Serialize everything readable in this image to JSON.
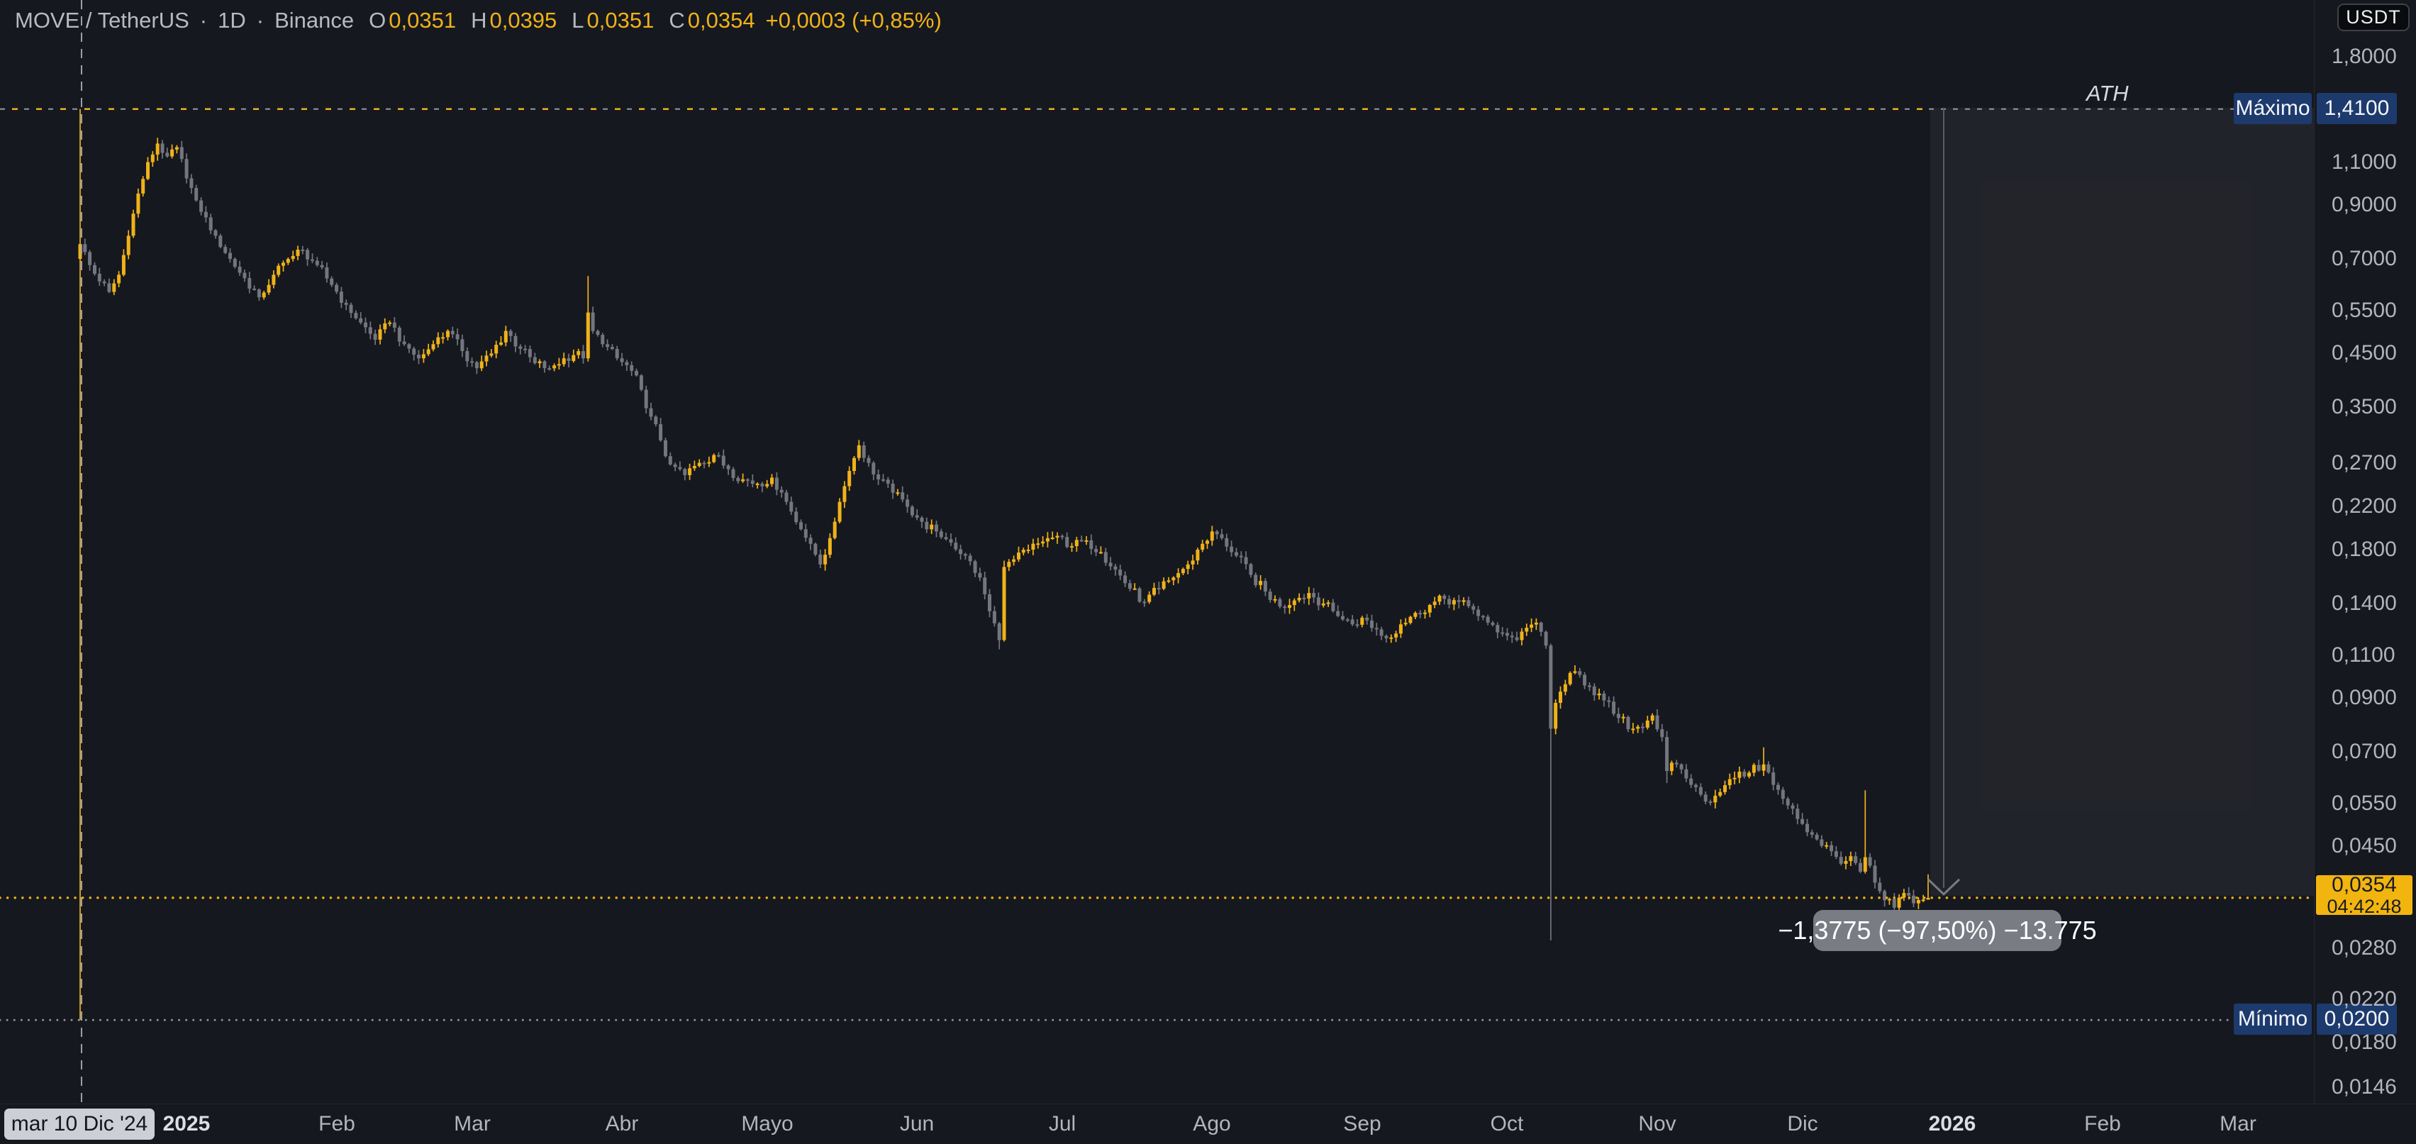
{
  "header": {
    "symbol": "MOVE / TetherUS",
    "sep": "·",
    "timeframe": "1D",
    "exchange": "Binance",
    "o_label": "O",
    "o": "0,0351",
    "h_label": "H",
    "h": "0,0395",
    "l_label": "L",
    "l": "0,0351",
    "c_label": "C",
    "c": "0,0354",
    "change": "+0,0003 (+0,85%)"
  },
  "currency_button": {
    "label": "USDT"
  },
  "price_axis": {
    "maximo": {
      "label": "Máximo",
      "value": "1,4100",
      "price": 1.41
    },
    "minimo": {
      "label": "Mínimo",
      "value": "0,0200",
      "price": 0.02
    },
    "current": {
      "value": "0,0354",
      "countdown": "04:42:48",
      "price": 0.0354
    }
  },
  "time_axis": {
    "crosshair_date": "mar 10 Dic '24"
  },
  "annotations": {
    "ath": "ATH",
    "tooltip": "−1,3775 (−97,50%) −13.775"
  },
  "colors": {
    "bg": "#16181F",
    "up": "#F0B219",
    "down": "#74767F",
    "line_gray": "#9598A1",
    "dim_gray": "#787B86",
    "navy": "#1D3A6D",
    "gold_label": "#F2B50F",
    "axis_text": "#B2B5BE"
  },
  "chart_data": {
    "type": "candlestick",
    "title": "MOVE / TetherUS · 1D · Binance",
    "scale": "log",
    "ylim": [
      0.0146,
      1.8
    ],
    "grid": false,
    "legend_position": "none",
    "price_ticks": [
      {
        "v": 1.8,
        "label": "1,8000"
      },
      {
        "v": 1.1,
        "label": "1,1000"
      },
      {
        "v": 0.9,
        "label": "0,9000"
      },
      {
        "v": 0.7,
        "label": "0,7000"
      },
      {
        "v": 0.55,
        "label": "0,5500"
      },
      {
        "v": 0.45,
        "label": "0,4500"
      },
      {
        "v": 0.35,
        "label": "0,3500"
      },
      {
        "v": 0.27,
        "label": "0,2700"
      },
      {
        "v": 0.22,
        "label": "0,2200"
      },
      {
        "v": 0.18,
        "label": "0,1800"
      },
      {
        "v": 0.14,
        "label": "0,1400"
      },
      {
        "v": 0.11,
        "label": "0,1100"
      },
      {
        "v": 0.09,
        "label": "0,0900"
      },
      {
        "v": 0.07,
        "label": "0,0700"
      },
      {
        "v": 0.055,
        "label": "0,0550"
      },
      {
        "v": 0.045,
        "label": "0,0450"
      },
      {
        "v": 0.028,
        "label": "0,0280"
      },
      {
        "v": 0.022,
        "label": "0,0220"
      },
      {
        "v": 0.018,
        "label": "0,0180"
      },
      {
        "v": 0.0146,
        "label": "0,0146"
      }
    ],
    "special_levels": {
      "ath": 1.41,
      "minimo": 0.02,
      "current": 0.0354
    },
    "month_labels": [
      {
        "text": "2025",
        "day": 22,
        "bold": true
      },
      {
        "text": "Feb",
        "day": 53
      },
      {
        "text": "Mar",
        "day": 81
      },
      {
        "text": "Abr",
        "day": 112
      },
      {
        "text": "Mayo",
        "day": 142
      },
      {
        "text": "Jun",
        "day": 173
      },
      {
        "text": "Jul",
        "day": 203
      },
      {
        "text": "Ago",
        "day": 234
      },
      {
        "text": "Sep",
        "day": 265
      },
      {
        "text": "Oct",
        "day": 295
      },
      {
        "text": "Nov",
        "day": 326
      },
      {
        "text": "Dic",
        "day": 356
      },
      {
        "text": "2026",
        "day": 387,
        "bold": true
      },
      {
        "text": "Feb",
        "day": 418
      },
      {
        "text": "Mar",
        "day": 446
      }
    ],
    "first_day": "2024-12-10",
    "days_total": 383,
    "keyframes": [
      [
        0,
        0.75
      ],
      [
        2,
        0.68
      ],
      [
        4,
        0.63
      ],
      [
        6,
        0.6
      ],
      [
        8,
        0.65
      ],
      [
        10,
        0.78
      ],
      [
        12,
        0.95
      ],
      [
        14,
        1.1
      ],
      [
        16,
        1.2
      ],
      [
        18,
        1.13
      ],
      [
        20,
        1.18
      ],
      [
        22,
        1.02
      ],
      [
        24,
        0.92
      ],
      [
        26,
        0.85
      ],
      [
        28,
        0.78
      ],
      [
        31,
        0.7
      ],
      [
        34,
        0.64
      ],
      [
        37,
        0.585
      ],
      [
        40,
        0.65
      ],
      [
        43,
        0.7
      ],
      [
        46,
        0.73
      ],
      [
        49,
        0.68
      ],
      [
        52,
        0.62
      ],
      [
        55,
        0.565
      ],
      [
        58,
        0.52
      ],
      [
        61,
        0.48
      ],
      [
        64,
        0.52
      ],
      [
        67,
        0.47
      ],
      [
        70,
        0.44
      ],
      [
        73,
        0.47
      ],
      [
        76,
        0.5
      ],
      [
        79,
        0.455
      ],
      [
        82,
        0.42
      ],
      [
        85,
        0.45
      ],
      [
        88,
        0.5
      ],
      [
        91,
        0.46
      ],
      [
        94,
        0.43
      ],
      [
        97,
        0.42
      ],
      [
        100,
        0.44
      ],
      [
        103,
        0.455
      ],
      [
        104,
        0.44
      ],
      [
        105,
        0.545
      ],
      [
        106,
        0.5
      ],
      [
        108,
        0.47
      ],
      [
        111,
        0.44
      ],
      [
        114,
        0.415
      ],
      [
        116,
        0.38
      ],
      [
        118,
        0.335
      ],
      [
        120,
        0.3
      ],
      [
        122,
        0.268
      ],
      [
        125,
        0.255
      ],
      [
        128,
        0.27
      ],
      [
        131,
        0.28
      ],
      [
        134,
        0.262
      ],
      [
        137,
        0.25
      ],
      [
        140,
        0.245
      ],
      [
        143,
        0.252
      ],
      [
        145,
        0.235
      ],
      [
        147,
        0.215
      ],
      [
        149,
        0.198
      ],
      [
        151,
        0.185
      ],
      [
        153,
        0.168
      ],
      [
        155,
        0.19
      ],
      [
        157,
        0.225
      ],
      [
        159,
        0.26
      ],
      [
        161,
        0.293
      ],
      [
        163,
        0.27
      ],
      [
        165,
        0.25
      ],
      [
        168,
        0.235
      ],
      [
        171,
        0.22
      ],
      [
        174,
        0.205
      ],
      [
        177,
        0.196
      ],
      [
        180,
        0.186
      ],
      [
        183,
        0.175
      ],
      [
        186,
        0.158
      ],
      [
        188,
        0.135
      ],
      [
        190,
        0.118
      ],
      [
        191,
        0.166
      ],
      [
        193,
        0.172
      ],
      [
        196,
        0.18
      ],
      [
        199,
        0.187
      ],
      [
        202,
        0.192
      ],
      [
        205,
        0.183
      ],
      [
        208,
        0.188
      ],
      [
        211,
        0.178
      ],
      [
        214,
        0.164
      ],
      [
        217,
        0.15
      ],
      [
        220,
        0.141
      ],
      [
        223,
        0.15
      ],
      [
        226,
        0.158
      ],
      [
        229,
        0.168
      ],
      [
        232,
        0.185
      ],
      [
        234,
        0.196
      ],
      [
        236,
        0.19
      ],
      [
        239,
        0.175
      ],
      [
        242,
        0.16
      ],
      [
        245,
        0.148
      ],
      [
        248,
        0.138
      ],
      [
        251,
        0.142
      ],
      [
        254,
        0.147
      ],
      [
        257,
        0.14
      ],
      [
        260,
        0.132
      ],
      [
        263,
        0.127
      ],
      [
        265,
        0.131
      ],
      [
        268,
        0.124
      ],
      [
        270,
        0.119
      ],
      [
        273,
        0.127
      ],
      [
        276,
        0.134
      ],
      [
        279,
        0.139
      ],
      [
        282,
        0.143
      ],
      [
        285,
        0.141
      ],
      [
        288,
        0.136
      ],
      [
        291,
        0.128
      ],
      [
        294,
        0.122
      ],
      [
        297,
        0.118
      ],
      [
        299,
        0.125
      ],
      [
        301,
        0.128
      ],
      [
        303,
        0.115
      ],
      [
        304,
        0.078
      ],
      [
        305,
        0.088
      ],
      [
        307,
        0.096
      ],
      [
        309,
        0.102
      ],
      [
        312,
        0.095
      ],
      [
        315,
        0.089
      ],
      [
        318,
        0.082
      ],
      [
        321,
        0.078
      ],
      [
        324,
        0.081
      ],
      [
        325,
        0.083
      ],
      [
        327,
        0.075
      ],
      [
        328,
        0.064
      ],
      [
        330,
        0.066
      ],
      [
        333,
        0.06
      ],
      [
        336,
        0.0555
      ],
      [
        339,
        0.058
      ],
      [
        342,
        0.062
      ],
      [
        345,
        0.0635
      ],
      [
        348,
        0.066
      ],
      [
        350,
        0.06
      ],
      [
        353,
        0.0545
      ],
      [
        356,
        0.05
      ],
      [
        359,
        0.0465
      ],
      [
        362,
        0.044
      ],
      [
        364,
        0.0415
      ],
      [
        366,
        0.043
      ],
      [
        368,
        0.04
      ],
      [
        369,
        0.0428
      ],
      [
        371,
        0.038
      ],
      [
        373,
        0.035
      ],
      [
        375,
        0.0338
      ],
      [
        377,
        0.0362
      ],
      [
        379,
        0.0345
      ],
      [
        381,
        0.0351
      ],
      [
        382,
        0.0354
      ]
    ],
    "specials": {
      "0": {
        "o": 0.7,
        "h": 1.41,
        "l": 0.02,
        "c": 0.75
      },
      "105": {
        "h": 0.646,
        "c": 0.545
      },
      "190": {
        "l": 0.113,
        "c": 0.118
      },
      "191": {
        "h": 0.171,
        "c": 0.166
      },
      "304": {
        "h": 0.116,
        "l": 0.029,
        "c": 0.078
      },
      "328": {
        "l": 0.0605,
        "c": 0.064
      },
      "348": {
        "h": 0.0715,
        "c": 0.066
      },
      "369": {
        "h": 0.0585,
        "c": 0.0428
      },
      "382": {
        "o": 0.0351,
        "h": 0.0395,
        "l": 0.0351,
        "c": 0.0354
      }
    },
    "last_candle": {
      "o": 0.0351,
      "h": 0.0395,
      "l": 0.0351,
      "c": 0.0354
    },
    "decline_stats": {
      "abs": "−1,3775",
      "pct": "−97,50%",
      "ticks": "−13.775"
    }
  }
}
